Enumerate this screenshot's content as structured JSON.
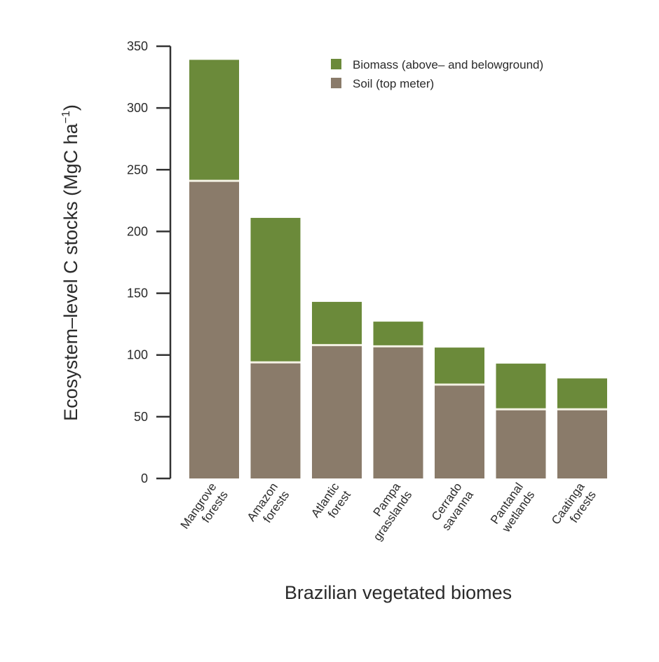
{
  "chart_data": {
    "type": "bar",
    "stacked": true,
    "categories": [
      [
        "Mangrove",
        "forests"
      ],
      [
        "Amazon",
        "forests"
      ],
      [
        "Atlantic",
        "forest"
      ],
      [
        "Pampa",
        "grasslands"
      ],
      [
        "Cerrado",
        "savanna"
      ],
      [
        "Pantanal",
        "wetlands"
      ],
      [
        "Caatinga",
        "forests"
      ]
    ],
    "series": [
      {
        "name": "Soil (top meter)",
        "color": "#8a7b6a",
        "values": [
          241,
          94,
          108,
          107,
          76,
          56,
          56
        ]
      },
      {
        "name": "Biomass (above– and belowground)",
        "color": "#6b8a3a",
        "values": [
          98,
          117,
          35,
          20,
          30,
          37,
          25
        ]
      }
    ],
    "legend_order": [
      1,
      0
    ],
    "xlabel": "Brazilian vegetated biomes",
    "ylabel": "Ecosystem–level C stocks (MgC ha",
    "ylabel_superscript": "−1",
    "ylabel_close": ")",
    "ylim": [
      0,
      350
    ],
    "yticks": [
      0,
      50,
      100,
      150,
      200,
      250,
      300,
      350
    ],
    "grid": false,
    "legend_position": "top-right"
  }
}
